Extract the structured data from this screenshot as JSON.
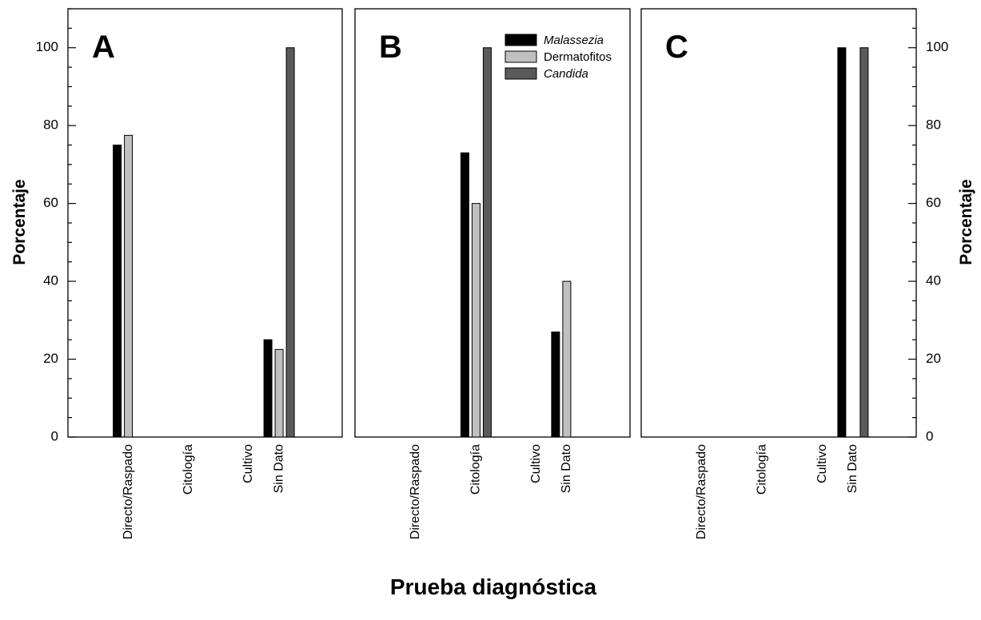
{
  "figure": {
    "xlabel": "Prueba diagnóstica",
    "ylabel_left": "Porcentaje",
    "ylabel_right": "Porcentaje"
  },
  "legend": [
    {
      "name": "Malassezia",
      "italic": true,
      "color": "#000000"
    },
    {
      "name": "Dermatofitos",
      "italic": false,
      "color": "#c0c0c0"
    },
    {
      "name": "Candida",
      "italic": true,
      "color": "#5a5a5a"
    }
  ],
  "chart_data": [
    {
      "type": "bar",
      "panel": "A",
      "categories": [
        "Directo/Raspado",
        "Citología",
        "Cultivo",
        "Sin Dato"
      ],
      "series": [
        {
          "name": "Malassezia",
          "values": [
            75,
            0,
            0,
            25
          ]
        },
        {
          "name": "Dermatofitos",
          "values": [
            77.5,
            0,
            0,
            22.5
          ]
        },
        {
          "name": "Candida",
          "values": [
            0,
            0,
            0,
            100
          ]
        }
      ],
      "ylim": [
        0,
        110
      ],
      "yticks": [
        0,
        20,
        40,
        60,
        80,
        100
      ]
    },
    {
      "type": "bar",
      "panel": "B",
      "categories": [
        "Directo/Raspado",
        "Citología",
        "Cultivo",
        "Sin Dato"
      ],
      "series": [
        {
          "name": "Malassezia",
          "values": [
            0,
            73,
            0,
            27
          ]
        },
        {
          "name": "Dermatofitos",
          "values": [
            0,
            60,
            0,
            40
          ]
        },
        {
          "name": "Candida",
          "values": [
            0,
            100,
            0,
            0
          ]
        }
      ],
      "ylim": [
        0,
        110
      ],
      "yticks": [
        0,
        20,
        40,
        60,
        80,
        100
      ]
    },
    {
      "type": "bar",
      "panel": "C",
      "categories": [
        "Directo/Raspado",
        "Citología",
        "Cultivo",
        "Sin Dato"
      ],
      "series": [
        {
          "name": "Malassezia",
          "values": [
            0,
            0,
            0,
            100
          ]
        },
        {
          "name": "Dermatofitos",
          "values": [
            0,
            0,
            0,
            0
          ]
        },
        {
          "name": "Candida",
          "values": [
            0,
            0,
            0,
            100
          ]
        }
      ],
      "ylim": [
        0,
        110
      ],
      "yticks": [
        0,
        20,
        40,
        60,
        80,
        100
      ]
    }
  ]
}
